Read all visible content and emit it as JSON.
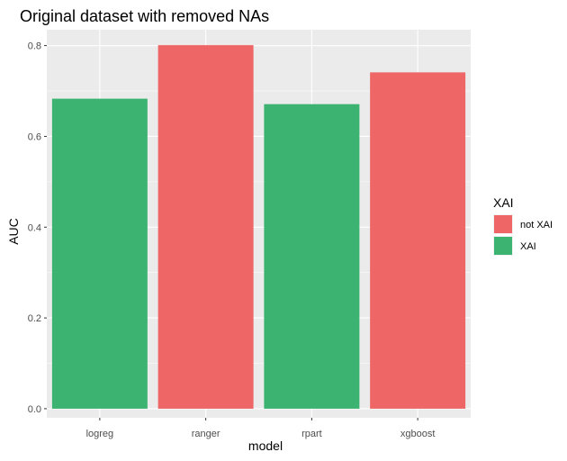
{
  "chart_data": {
    "type": "bar",
    "title": "Original dataset with removed NAs",
    "xlabel": "model",
    "ylabel": "AUC",
    "categories": [
      "logreg",
      "ranger",
      "rpart",
      "xgboost"
    ],
    "values": [
      0.683,
      0.801,
      0.671,
      0.741
    ],
    "groups": [
      "XAI",
      "not XAI",
      "XAI",
      "not XAI"
    ],
    "ylim": [
      -0.02,
      0.835
    ],
    "yticks": [
      0.0,
      0.2,
      0.4,
      0.6,
      0.8
    ],
    "ytick_labels": [
      "0.0",
      "0.2",
      "0.4",
      "0.6",
      "0.8"
    ],
    "grid": true,
    "legend": {
      "title": "XAI",
      "position": "right",
      "entries": [
        {
          "label": "not XAI",
          "color": "#ee6666"
        },
        {
          "label": "XAI",
          "color": "#3cb371"
        }
      ]
    },
    "colors": {
      "not XAI": "#ee6666",
      "XAI": "#3cb371",
      "panel_background": "#ebebeb",
      "grid": "#ffffff"
    }
  }
}
